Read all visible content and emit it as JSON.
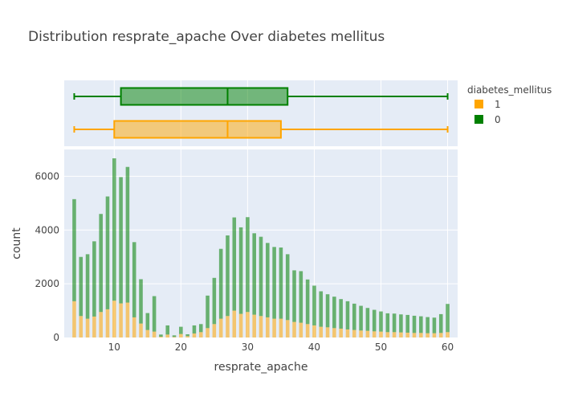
{
  "chart_data": {
    "type": "bar",
    "title": "Distribution resprate_apache Over diabetes mellitus",
    "xlabel": "resprate_apache",
    "ylabel": "count",
    "barmode": "stack",
    "xlim": [
      2.5,
      61.5
    ],
    "ylim": [
      0,
      7000
    ],
    "xticks": [
      10,
      20,
      30,
      40,
      50,
      60
    ],
    "yticks": [
      0,
      2000,
      4000,
      6000
    ],
    "legend": {
      "title": "diabetes_mellitus",
      "placement": "top-right",
      "entries": [
        "1",
        "0"
      ]
    },
    "colors": {
      "1": "#FFA500",
      "0": "#008000"
    },
    "x": [
      4,
      5,
      6,
      7,
      8,
      9,
      10,
      11,
      12,
      13,
      14,
      15,
      16,
      17,
      18,
      19,
      20,
      21,
      22,
      23,
      24,
      25,
      26,
      27,
      28,
      29,
      30,
      31,
      32,
      33,
      34,
      35,
      36,
      37,
      38,
      39,
      40,
      41,
      42,
      43,
      44,
      45,
      46,
      47,
      48,
      49,
      50,
      51,
      52,
      53,
      54,
      55,
      56,
      57,
      58,
      59,
      60
    ],
    "series": [
      {
        "name": "1",
        "values": [
          1350,
          800,
          700,
          780,
          950,
          1050,
          1370,
          1270,
          1300,
          750,
          520,
          280,
          220,
          30,
          110,
          20,
          130,
          50,
          150,
          200,
          350,
          500,
          700,
          800,
          1000,
          880,
          950,
          850,
          800,
          750,
          700,
          700,
          650,
          580,
          550,
          500,
          450,
          400,
          380,
          350,
          330,
          300,
          280,
          260,
          250,
          230,
          220,
          200,
          200,
          190,
          180,
          170,
          170,
          160,
          160,
          170,
          200
        ]
      },
      {
        "name": "0",
        "values": [
          3800,
          2200,
          2400,
          2800,
          3650,
          4200,
          5300,
          4700,
          5050,
          2800,
          1650,
          630,
          1320,
          80,
          340,
          60,
          270,
          70,
          300,
          300,
          1210,
          1720,
          2600,
          3000,
          3470,
          3220,
          3530,
          3030,
          2950,
          2770,
          2670,
          2650,
          2450,
          1920,
          1920,
          1660,
          1480,
          1320,
          1230,
          1170,
          1100,
          1050,
          980,
          920,
          850,
          800,
          750,
          700,
          690,
          670,
          660,
          640,
          620,
          600,
          580,
          700,
          1050
        ]
      }
    ],
    "boxplots": [
      {
        "name": "0",
        "min": 4,
        "q1": 11,
        "median": 27,
        "q3": 36,
        "max": 60
      },
      {
        "name": "1",
        "min": 4,
        "q1": 10,
        "median": 27,
        "q3": 35,
        "max": 60
      }
    ]
  }
}
